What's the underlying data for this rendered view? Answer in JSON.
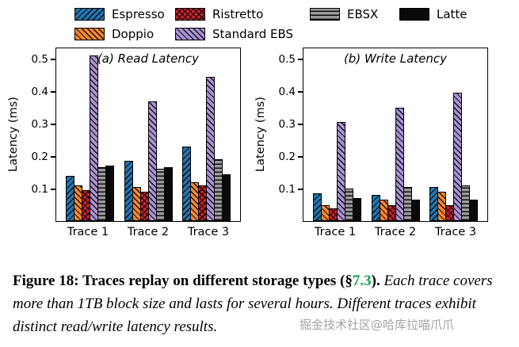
{
  "figure": {
    "legend": [
      {
        "label": "Espresso",
        "color": "#2277b4",
        "hatch": "fwd"
      },
      {
        "label": "Ristretto",
        "color": "#cb2130",
        "hatch": "cross"
      },
      {
        "label": "EBSX",
        "color": "#9b9b9b",
        "hatch": "horiz"
      },
      {
        "label": "Latte",
        "color": "#0a0a0a",
        "hatch": "none"
      },
      {
        "label": "Doppio",
        "color": "#f6882c",
        "hatch": "back"
      },
      {
        "label": "Standard EBS",
        "color": "#ab93d5",
        "hatch": "back"
      }
    ]
  },
  "chart_data": [
    {
      "type": "bar",
      "title": "(a) Read Latency",
      "ylabel": "Latency (ms)",
      "categories": [
        "Trace 1",
        "Trace 2",
        "Trace 3"
      ],
      "yticks": [
        0.1,
        0.2,
        0.3,
        0.4,
        0.5
      ],
      "ylim": [
        0,
        0.53
      ],
      "grid": false,
      "series": [
        {
          "name": "Espresso",
          "values": [
            0.14,
            0.185,
            0.23
          ]
        },
        {
          "name": "Doppio",
          "values": [
            0.11,
            0.105,
            0.12
          ]
        },
        {
          "name": "Ristretto",
          "values": [
            0.095,
            0.09,
            0.11
          ]
        },
        {
          "name": "Standard EBS",
          "values": [
            0.51,
            0.37,
            0.445
          ]
        },
        {
          "name": "EBSX",
          "values": [
            0.165,
            0.16,
            0.19
          ]
        },
        {
          "name": "Latte",
          "values": [
            0.17,
            0.165,
            0.145
          ]
        }
      ]
    },
    {
      "type": "bar",
      "title": "(b) Write Latency",
      "ylabel": "Latency (ms)",
      "categories": [
        "Trace 1",
        "Trace 2",
        "Trace 3"
      ],
      "yticks": [
        0.1,
        0.2,
        0.3,
        0.4,
        0.5
      ],
      "ylim": [
        0,
        0.53
      ],
      "grid": false,
      "series": [
        {
          "name": "Espresso",
          "values": [
            0.085,
            0.08,
            0.105
          ]
        },
        {
          "name": "Doppio",
          "values": [
            0.05,
            0.065,
            0.09
          ]
        },
        {
          "name": "Ristretto",
          "values": [
            0.04,
            0.05,
            0.05
          ]
        },
        {
          "name": "Standard EBS",
          "values": [
            0.305,
            0.35,
            0.395
          ]
        },
        {
          "name": "EBSX",
          "values": [
            0.1,
            0.105,
            0.11
          ]
        },
        {
          "name": "Latte",
          "values": [
            0.07,
            0.065,
            0.065
          ]
        }
      ]
    }
  ],
  "caption": {
    "figure_label": "Figure 18:",
    "bold_text": "Traces replay on different storage types (§",
    "section_ref": "7.3",
    "bold_close": ").",
    "italic_text": "Each trace covers more than 1TB block size and lasts for several hours. Different traces exhibit distinct read/write latency results.",
    "section_color": "#12a24e"
  },
  "watermark": {
    "text": "掘金技术社区@哈库拉喵爪爪"
  }
}
